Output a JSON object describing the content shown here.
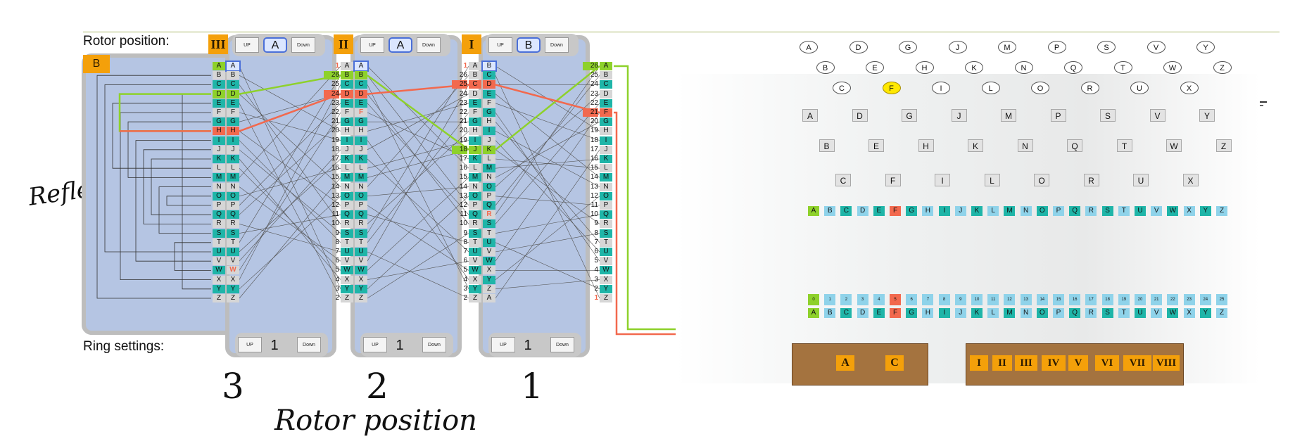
{
  "labels": {
    "rotor_position": "Rotor position:",
    "ring_settings": "Ring settings:",
    "reflector_hand": "Reflector",
    "rotor_position_hand": "Rotor position",
    "rotor_number_3": "3",
    "rotor_number_2": "2",
    "rotor_number_1": "1",
    "reflector_tag": "B"
  },
  "rotors": [
    {
      "slot": 3,
      "name": "III",
      "position": "A",
      "ring": "1",
      "up": "UP",
      "down": "Down"
    },
    {
      "slot": 2,
      "name": "II",
      "position": "A",
      "ring": "1",
      "up": "UP",
      "down": "Down"
    },
    {
      "slot": 1,
      "name": "I",
      "position": "B",
      "ring": "1",
      "up": "UP",
      "down": "Down"
    }
  ],
  "alphabet": [
    "A",
    "B",
    "C",
    "D",
    "E",
    "F",
    "G",
    "H",
    "I",
    "J",
    "K",
    "L",
    "M",
    "N",
    "O",
    "P",
    "Q",
    "R",
    "S",
    "T",
    "U",
    "V",
    "W",
    "X",
    "Y",
    "Z"
  ],
  "column_numbers": {
    "rotor2_left": [
      "1",
      "26",
      "25",
      "24",
      "23",
      "22",
      "21",
      "20",
      "19",
      "18",
      "17",
      "16",
      "15",
      "14",
      "13",
      "12",
      "11",
      "10",
      "9",
      "8",
      "7",
      "6",
      "5",
      "4",
      "3",
      "2"
    ],
    "rotor1_left": [
      "1",
      "26",
      "25",
      "24",
      "23",
      "22",
      "21",
      "20",
      "19",
      "18",
      "17",
      "16",
      "15",
      "14",
      "13",
      "12",
      "11",
      "10",
      "9",
      "8",
      "7",
      "6",
      "5",
      "4",
      "3",
      "2"
    ],
    "rotor1_right": [
      "26",
      "25",
      "24",
      "23",
      "22",
      "21",
      "20",
      "19",
      "18",
      "17",
      "16",
      "15",
      "14",
      "13",
      "12",
      "11",
      "10",
      "9",
      "8",
      "7",
      "6",
      "5",
      "4",
      "3",
      "2",
      "1"
    ]
  },
  "rotor_right_letters": {
    "rotor3": [
      "A",
      "B",
      "C",
      "D",
      "E",
      "F",
      "G",
      "H",
      "I",
      "J",
      "K",
      "L",
      "M",
      "N",
      "O",
      "P",
      "Q",
      "R",
      "S",
      "T",
      "U",
      "V",
      "W",
      "X",
      "Y",
      "Z"
    ],
    "rotor2": [
      "A",
      "B",
      "C",
      "D",
      "E",
      "F",
      "G",
      "H",
      "I",
      "J",
      "K",
      "L",
      "M",
      "N",
      "O",
      "P",
      "Q",
      "R",
      "S",
      "T",
      "U",
      "V",
      "W",
      "X",
      "Y",
      "Z"
    ],
    "rotor1": [
      "B",
      "C",
      "D",
      "E",
      "F",
      "G",
      "H",
      "I",
      "J",
      "K",
      "L",
      "M",
      "N",
      "O",
      "P",
      "Q",
      "R",
      "S",
      "T",
      "U",
      "V",
      "W",
      "X",
      "Y",
      "Z",
      "A"
    ]
  },
  "lamps": [
    "A",
    "B",
    "C",
    "D",
    "E",
    "F",
    "G",
    "H",
    "I",
    "J",
    "K",
    "L",
    "M",
    "N",
    "O",
    "P",
    "Q",
    "R",
    "S",
    "T",
    "U",
    "V",
    "W",
    "X",
    "Y",
    "Z"
  ],
  "keys": [
    "A",
    "B",
    "C",
    "D",
    "E",
    "F",
    "G",
    "H",
    "I",
    "J",
    "K",
    "L",
    "M",
    "N",
    "O",
    "P",
    "Q",
    "R",
    "S",
    "T",
    "U",
    "V",
    "W",
    "X",
    "Y",
    "Z"
  ],
  "plugboard_numbers": [
    "0",
    "1",
    "2",
    "3",
    "4",
    "5",
    "6",
    "7",
    "8",
    "9",
    "10",
    "11",
    "12",
    "13",
    "14",
    "15",
    "16",
    "17",
    "18",
    "19",
    "20",
    "21",
    "22",
    "23",
    "24",
    "25"
  ],
  "lit_lamp": "F",
  "reflector_tray": [
    "A",
    "C"
  ],
  "rotor_tray": [
    "I",
    "II",
    "III",
    "IV",
    "V",
    "VI",
    "VII",
    "VIII"
  ],
  "colors": {
    "teal": "#1fb5a8",
    "green": "#8ed12b",
    "red": "#f2694e",
    "grey": "#d6d6d6",
    "orange": "#f4a00a",
    "rotor_bg": "#b5c5e3",
    "light_blue": "#8fd3ea"
  }
}
